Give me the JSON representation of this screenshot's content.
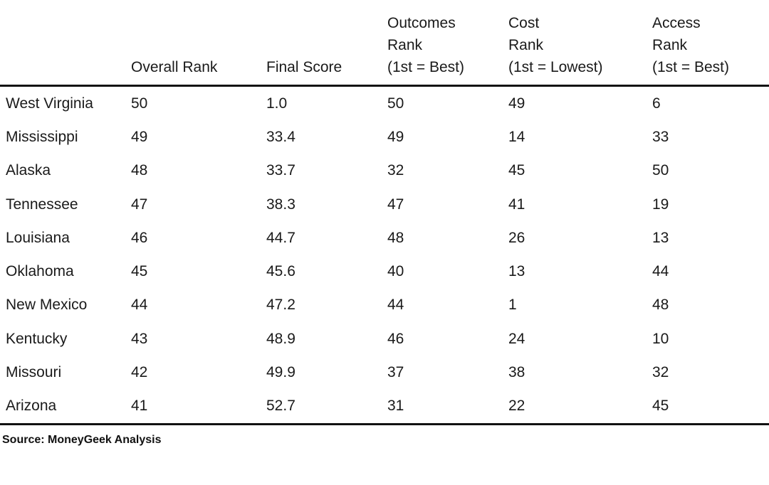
{
  "table": {
    "headers": [
      [
        ""
      ],
      [
        "Overall Rank"
      ],
      [
        "Final Score"
      ],
      [
        "Outcomes",
        "Rank",
        "(1st = Best)"
      ],
      [
        "Cost",
        "Rank",
        "(1st = Lowest)"
      ],
      [
        "Access",
        "Rank",
        "(1st = Best)"
      ]
    ],
    "rows": [
      [
        "West Virginia",
        "50",
        "1.0",
        "50",
        "49",
        "6"
      ],
      [
        "Mississippi",
        "49",
        "33.4",
        "49",
        "14",
        "33"
      ],
      [
        "Alaska",
        "48",
        "33.7",
        "32",
        "45",
        "50"
      ],
      [
        "Tennessee",
        "47",
        "38.3",
        "47",
        "41",
        "19"
      ],
      [
        "Louisiana",
        "46",
        "44.7",
        "48",
        "26",
        "13"
      ],
      [
        "Oklahoma",
        "45",
        "45.6",
        "40",
        "13",
        "44"
      ],
      [
        "New Mexico",
        "44",
        "47.2",
        "44",
        "1",
        "48"
      ],
      [
        "Kentucky",
        "43",
        "48.9",
        "46",
        "24",
        "10"
      ],
      [
        "Missouri",
        "42",
        "49.9",
        "37",
        "38",
        "32"
      ],
      [
        "Arizona",
        "41",
        "52.7",
        "31",
        "22",
        "45"
      ]
    ]
  },
  "source": "Source: MoneyGeek Analysis"
}
